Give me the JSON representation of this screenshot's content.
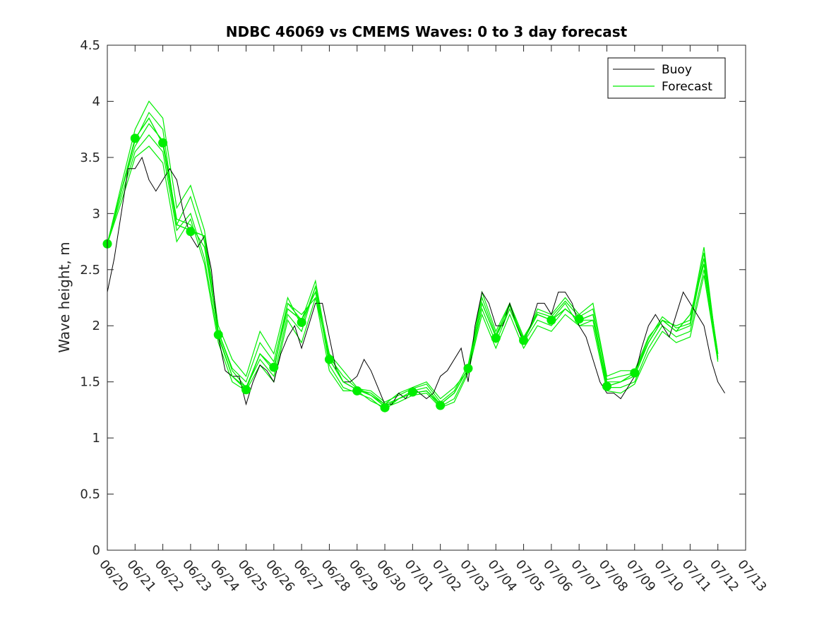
{
  "chart_data": {
    "type": "line",
    "title": "NDBC 46069 vs CMEMS Waves: 0 to 3 day forecast",
    "xlabel": "",
    "ylabel": "Wave height, m",
    "x_ticks": [
      "06/20",
      "06/21",
      "06/22",
      "06/23",
      "06/24",
      "06/25",
      "06/26",
      "06/27",
      "06/28",
      "06/29",
      "06/30",
      "07/01",
      "07/02",
      "07/03",
      "07/04",
      "07/05",
      "07/06",
      "07/07",
      "07/08",
      "07/09",
      "07/10",
      "07/11",
      "07/12",
      "07/13"
    ],
    "xlim_days": [
      0,
      23
    ],
    "ylim": [
      0,
      4.5
    ],
    "y_ticks": [
      "0",
      "0.5",
      "1",
      "1.5",
      "2",
      "2.5",
      "3",
      "3.5",
      "4",
      "4.5"
    ],
    "grid": false,
    "legend_position": "top-right",
    "colors": {
      "buoy": "#000000",
      "forecast": "#00ee00",
      "axis": "#262626"
    },
    "series": [
      {
        "name": "Buoy",
        "x": [
          0,
          0.25,
          0.5,
          0.75,
          1,
          1.25,
          1.5,
          1.75,
          2,
          2.25,
          2.5,
          2.75,
          3,
          3.25,
          3.5,
          3.75,
          4,
          4.25,
          4.5,
          4.75,
          5,
          5.25,
          5.5,
          5.75,
          6,
          6.25,
          6.5,
          6.75,
          7,
          7.25,
          7.5,
          7.75,
          8,
          8.25,
          8.5,
          8.75,
          9,
          9.25,
          9.5,
          9.75,
          10,
          10.25,
          10.5,
          10.75,
          11,
          11.25,
          11.5,
          11.75,
          12,
          12.25,
          12.5,
          12.75,
          13,
          13.25,
          13.5,
          13.75,
          14,
          14.25,
          14.5,
          14.75,
          15,
          15.25,
          15.5,
          15.75,
          16,
          16.25,
          16.5,
          16.75,
          17,
          17.25,
          17.5,
          17.75,
          18,
          18.25,
          18.5,
          18.75,
          19,
          19.25,
          19.5,
          19.75,
          20,
          20.25,
          20.5,
          20.75,
          21,
          21.25,
          21.5,
          21.75,
          22,
          22.25
        ],
        "y": [
          2.3,
          2.6,
          3.0,
          3.4,
          3.4,
          3.5,
          3.3,
          3.2,
          3.3,
          3.4,
          3.3,
          3.0,
          2.8,
          2.7,
          2.8,
          2.5,
          1.9,
          1.6,
          1.55,
          1.55,
          1.3,
          1.5,
          1.65,
          1.6,
          1.5,
          1.75,
          1.9,
          2.0,
          1.8,
          2.0,
          2.2,
          2.2,
          1.9,
          1.6,
          1.5,
          1.5,
          1.55,
          1.7,
          1.6,
          1.45,
          1.3,
          1.3,
          1.4,
          1.35,
          1.45,
          1.4,
          1.35,
          1.4,
          1.55,
          1.6,
          1.7,
          1.8,
          1.5,
          2.0,
          2.3,
          2.2,
          2.0,
          2.0,
          2.2,
          2.0,
          1.85,
          2.0,
          2.2,
          2.2,
          2.1,
          2.3,
          2.3,
          2.2,
          2.0,
          1.9,
          1.7,
          1.5,
          1.4,
          1.4,
          1.35,
          1.45,
          1.55,
          1.8,
          2.0,
          2.1,
          2.0,
          1.9,
          2.1,
          2.3,
          2.2,
          2.1,
          2.0,
          1.7,
          1.5,
          1.4
        ]
      },
      {
        "name": "Forecast",
        "x": [
          0,
          0.5,
          1,
          1.5,
          2,
          2.5,
          3,
          3.5,
          4,
          4.5,
          5,
          5.5,
          6,
          6.5,
          7,
          7.5,
          8,
          8.5,
          9,
          9.5,
          10,
          10.5,
          11,
          11.5,
          12,
          12.5,
          13,
          13.5,
          14,
          14.5,
          15,
          15.5,
          16,
          16.5,
          17,
          17.5,
          18,
          18.5,
          19,
          19.5,
          20,
          20.5,
          21,
          21.5,
          22
        ],
        "y": [
          2.73,
          3.2,
          3.67,
          3.85,
          3.62,
          2.9,
          2.85,
          2.8,
          1.92,
          1.55,
          1.43,
          1.75,
          1.63,
          2.15,
          2.05,
          2.3,
          1.7,
          1.5,
          1.43,
          1.38,
          1.28,
          1.35,
          1.4,
          1.42,
          1.3,
          1.4,
          1.62,
          2.2,
          1.9,
          2.15,
          1.87,
          2.1,
          2.05,
          2.15,
          2.05,
          2.1,
          1.46,
          1.5,
          1.58,
          1.85,
          2.05,
          1.95,
          2.1,
          2.55,
          1.75
        ]
      }
    ],
    "forecast_members": [
      [
        2.73,
        3.2,
        3.6,
        3.8,
        3.65,
        2.95,
        2.9,
        2.7,
        1.95,
        1.6,
        1.45,
        1.75,
        1.6,
        2.2,
        2.1,
        2.25,
        1.75,
        1.5,
        1.43,
        1.4,
        1.3,
        1.35,
        1.42,
        1.45,
        1.3,
        1.4,
        1.62,
        2.2,
        1.9,
        2.2,
        1.9,
        2.1,
        2.05,
        2.2,
        2.0,
        2.05,
        1.5,
        1.5,
        1.55,
        1.85,
        2.05,
        1.95,
        2.0,
        2.6,
        1.75
      ],
      [
        2.73,
        3.25,
        3.75,
        4.0,
        3.85,
        3.05,
        3.25,
        2.85,
        2.0,
        1.7,
        1.55,
        1.95,
        1.75,
        2.25,
        2.0,
        2.35,
        1.75,
        1.6,
        1.45,
        1.38,
        1.3,
        1.4,
        1.45,
        1.5,
        1.35,
        1.45,
        1.6,
        2.3,
        1.95,
        2.2,
        1.85,
        2.15,
        2.1,
        2.25,
        2.1,
        2.2,
        1.55,
        1.6,
        1.6,
        1.9,
        2.05,
        2.0,
        2.05,
        2.7,
        1.7
      ],
      [
        2.73,
        3.15,
        3.55,
        3.7,
        3.55,
        2.85,
        3.0,
        2.6,
        1.9,
        1.55,
        1.45,
        1.7,
        1.55,
        2.1,
        1.95,
        2.35,
        1.65,
        1.45,
        1.4,
        1.35,
        1.25,
        1.35,
        1.4,
        1.42,
        1.28,
        1.35,
        1.6,
        2.15,
        1.85,
        2.15,
        1.85,
        2.05,
        2.0,
        2.15,
        2.05,
        2.05,
        1.45,
        1.45,
        1.5,
        1.8,
        2.0,
        1.9,
        1.95,
        2.5,
        1.7
      ],
      [
        2.73,
        3.1,
        3.5,
        3.6,
        3.45,
        2.75,
        2.95,
        2.55,
        1.85,
        1.5,
        1.42,
        1.65,
        1.5,
        2.05,
        1.85,
        2.25,
        1.6,
        1.42,
        1.42,
        1.33,
        1.27,
        1.32,
        1.38,
        1.4,
        1.27,
        1.32,
        1.58,
        2.1,
        1.8,
        2.1,
        1.8,
        2.0,
        1.95,
        2.1,
        2.0,
        2.0,
        1.42,
        1.4,
        1.48,
        1.75,
        1.95,
        1.85,
        1.9,
        2.45,
        1.68
      ],
      [
        2.73,
        3.2,
        3.65,
        3.9,
        3.75,
        2.9,
        3.15,
        2.75,
        1.95,
        1.62,
        1.5,
        1.85,
        1.68,
        2.2,
        2.05,
        2.4,
        1.72,
        1.55,
        1.44,
        1.42,
        1.32,
        1.38,
        1.44,
        1.48,
        1.32,
        1.42,
        1.65,
        2.25,
        1.92,
        2.18,
        1.88,
        2.12,
        2.08,
        2.22,
        2.08,
        2.15,
        1.52,
        1.55,
        1.58,
        1.88,
        2.08,
        1.98,
        2.02,
        2.65,
        1.72
      ]
    ],
    "forecast_markers": {
      "x": [
        0,
        1,
        2,
        3,
        4,
        5,
        6,
        7,
        8,
        9,
        10,
        11,
        12,
        13,
        14,
        15,
        16,
        17,
        18,
        19
      ],
      "y": [
        2.73,
        3.67,
        3.63,
        2.84,
        1.92,
        1.43,
        1.63,
        2.03,
        1.7,
        1.42,
        1.27,
        1.41,
        1.29,
        1.62,
        1.89,
        1.87,
        2.05,
        2.06,
        1.46,
        1.58
      ]
    }
  }
}
